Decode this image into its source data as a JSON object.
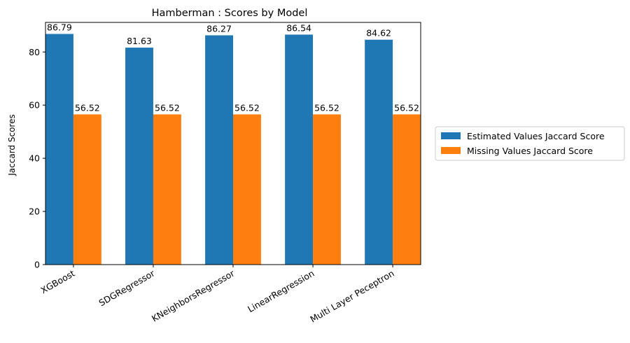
{
  "chart_data": {
    "type": "bar",
    "title": "Hamberman : Scores by Model",
    "xlabel": "",
    "ylabel": "Jaccard Scores",
    "categories": [
      "XGBoost",
      "SDGRegressor",
      "KNeighborsRegressor",
      "LinearRegression",
      "Multi Layer Peceptron"
    ],
    "series": [
      {
        "name": "Estimated Values Jaccard Score",
        "color": "#1f77b4",
        "values": [
          86.79,
          81.63,
          86.27,
          86.54,
          84.62
        ],
        "labels": [
          "86.79",
          "81.63",
          "86.27",
          "86.54",
          "84.62"
        ]
      },
      {
        "name": "Missing Values Jaccard Score",
        "color": "#ff7f0e",
        "values": [
          56.52,
          56.52,
          56.52,
          56.52,
          56.52
        ],
        "labels": [
          "56.52",
          "56.52",
          "56.52",
          "56.52",
          "56.52"
        ]
      }
    ],
    "ylim": [
      0,
      91.13
    ],
    "yticks": [
      0,
      20,
      40,
      60,
      80
    ],
    "ytick_labels": [
      "0",
      "20",
      "40",
      "60",
      "80"
    ],
    "grid": false,
    "legend": "outside-right"
  }
}
